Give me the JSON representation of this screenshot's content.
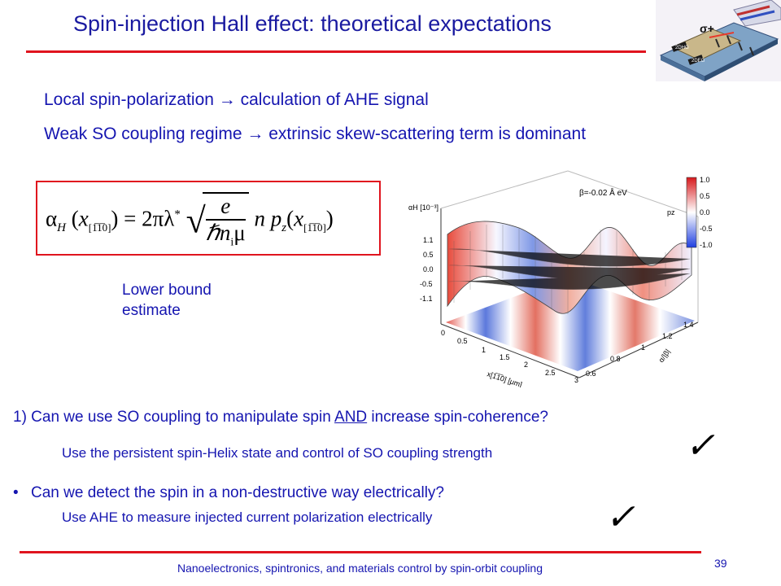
{
  "title": "Spin-injection Hall effect: theoretical expectations",
  "lines": {
    "line1": "Local spin-polarization → calculation of AHE signal",
    "line2": "Weak SO coupling regime → extrinsic skew-scattering term is dominant"
  },
  "formula": {
    "lhs": "α",
    "lhs_sub": "H",
    "x_var": "x",
    "x_sub": "[1̅1̅0]",
    "equals": "= 2πλ",
    "star": "*",
    "num": "e",
    "den": "ℏn",
    "den_sub": "i",
    "den_mu": "μ",
    "rhs": "n p",
    "rhs_sub": "z"
  },
  "note": {
    "line1": "Lower bound",
    "line2": "estimate"
  },
  "plot": {
    "beta_label": "β=-0.02 Å eV",
    "y_axis_label": "αH [10⁻³]",
    "y_ticks": [
      "1.1",
      "0.5",
      "0.0",
      "-0.5",
      "-1.1"
    ],
    "x_ticks": [
      "0",
      "0.5",
      "1",
      "1.5",
      "2",
      "2.5",
      "3"
    ],
    "x_axis_label": "x[1̅1̅0] [μm]",
    "z_ticks": [
      "0.6",
      "0.8",
      "1",
      "1.2",
      "1.4"
    ],
    "z_axis_label": "α/|β|",
    "colorbar_label": "pz",
    "colorbar_ticks": [
      "1.0",
      "0.5",
      "0.0",
      "-0.5",
      "-1.0"
    ]
  },
  "q1": {
    "prefix": "1) Can we use SO coupling to manipulate spin ",
    "emph": "AND",
    "suffix": " increase spin-coherence?"
  },
  "a1": "Use the persistent spin-Helix state and control of SO coupling strength",
  "q2": "Can we detect the spin in a non-destructive way electrically?",
  "a2": "Use AHE to measure injected current polarization electrically",
  "check": "✓",
  "bullet": "•",
  "device_label": "σ+",
  "footer": "Nanoelectronics, spintronics, and materials control by spin-orbit coupling",
  "page_number": "39"
}
